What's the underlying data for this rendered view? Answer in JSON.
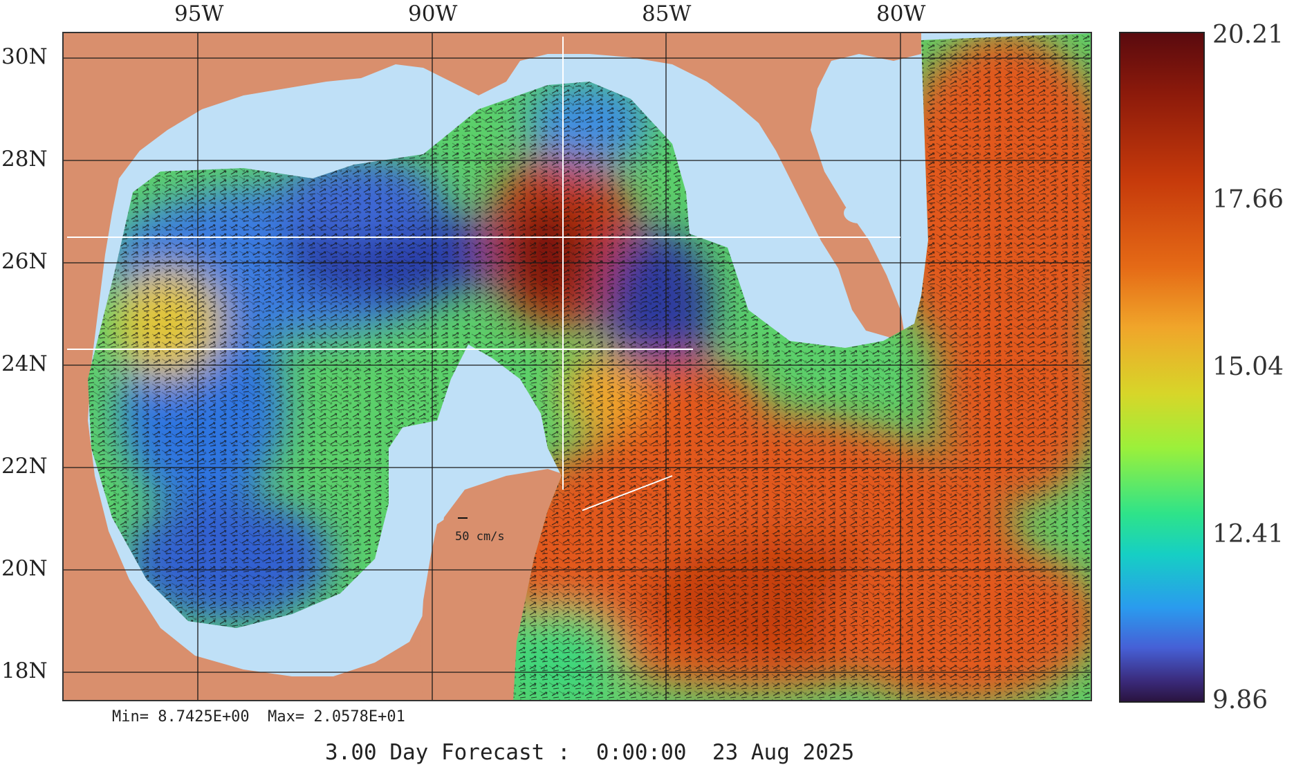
{
  "map": {
    "lon_labels": [
      "95W",
      "90W",
      "85W",
      "80W"
    ],
    "lat_labels": [
      "30N",
      "28N",
      "26N",
      "24N",
      "22N",
      "20N",
      "18N"
    ],
    "scale_label": "50 cm/s",
    "colors": {
      "land": "#d98f6d",
      "water": "#bfe0f7",
      "grid": "#1a1a1a",
      "vectors": "#111111"
    }
  },
  "colorbar": {
    "labels": [
      "20.21",
      "17.66",
      "15.04",
      "12.41",
      "9.86"
    ]
  },
  "footer": {
    "minmax": "Min= 8.7425E+00  Max= 2.0578E+01",
    "forecast": "3.00 Day Forecast :  0:00:00  23 Aug 2025"
  }
}
